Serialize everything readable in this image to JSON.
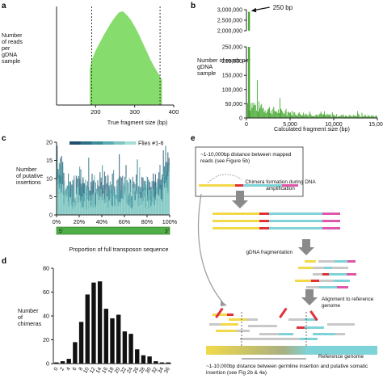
{
  "panel_a": {
    "letter": "a",
    "ylabel_lines": [
      "Number",
      "of reads",
      "per",
      "gDNA",
      "sample"
    ],
    "xlabel": "True fragment size (bp)",
    "colors": {
      "fill": "#86dc6c",
      "axis": "#222222"
    }
  },
  "panel_b": {
    "letter": "b",
    "ylabel_lines": [
      "Number of reads per",
      "gDNA",
      "sample"
    ],
    "xlabel": "Calculated fragment size (bp)",
    "annotation": "250 bp",
    "colors": {
      "bars": "#3fa42a"
    }
  },
  "panel_c": {
    "letter": "c",
    "ylabel_lines": [
      "Number",
      "of putative",
      "insertions"
    ],
    "xlabel": "Proportion of full transposon sequence",
    "legend_label": "Flies #1-6",
    "bar_left": "5'",
    "bar_right": "3'",
    "colors": {
      "series": [
        "#1f4f6a",
        "#2a6f86",
        "#3a8d98",
        "#58aab0",
        "#7cc5c1",
        "#a6ded6"
      ],
      "strip": "#4fae45"
    }
  },
  "panel_d": {
    "letter": "d",
    "ylabel_lines": [
      "Number",
      "of",
      "chimeras"
    ]
  },
  "panel_e": {
    "letter": "e",
    "box_text": "~1-10,000bp distance between mapped reads (see Figure 5b)",
    "step1": "Chimera formation during DNA amplification",
    "step2": "gDNA fragmentation",
    "step3": "Alignment to reference genome",
    "ref_label": "Reference genome",
    "bottom_text": "~1-10,000bp distance between germline insertion and putative somatic insertion (see Fig 2b & 4a)",
    "colors": {
      "yellow": "#f2d94a",
      "red": "#e0313a",
      "cyan": "#7ed3d8",
      "pink": "#e056a8",
      "grey": "#c8c8c8",
      "arrow": "#8a8a8a"
    }
  },
  "chart_data": [
    {
      "type": "area",
      "title": "",
      "xlabel": "True fragment size (bp)",
      "ylabel": "Number of reads per gDNA sample",
      "xlim": [
        100,
        400
      ],
      "x_ticks": [
        200,
        300,
        400
      ],
      "y_ticks": [],
      "x": [
        185,
        190,
        200,
        210,
        220,
        230,
        240,
        250,
        260,
        270,
        280,
        290,
        300,
        310,
        320,
        330,
        340,
        350,
        360,
        370
      ],
      "y": [
        0.38,
        0.48,
        0.58,
        0.66,
        0.74,
        0.81,
        0.88,
        0.94,
        0.99,
        1.0,
        0.96,
        0.91,
        0.84,
        0.76,
        0.67,
        0.58,
        0.49,
        0.41,
        0.34,
        0.27
      ],
      "reference_lines_x": [
        190,
        365
      ]
    },
    {
      "type": "bar",
      "title": "",
      "xlabel": "Calculated fragment size (bp)",
      "ylabel": "Number of reads per gDNA sample",
      "xlim": [
        0,
        15000
      ],
      "ylim": [
        0,
        3000000
      ],
      "x_ticks": [
        "0",
        "5,000",
        "10,000",
        "15,000"
      ],
      "y_ticks": [
        "0",
        "50,000",
        "100,000",
        "150,000",
        "200,000",
        "250,000",
        "2,000,000",
        "2,500,000",
        "3,000,000"
      ],
      "peak_x": 250,
      "annotation": "250 bp"
    },
    {
      "type": "bar",
      "title": "",
      "xlabel": "Proportion of full transposon sequence",
      "ylabel": "Number of putative insertions",
      "xlim": [
        0,
        100
      ],
      "ylim": [
        0,
        20
      ],
      "x_ticks": [
        "0%",
        "20%",
        "40%",
        "60%",
        "80%",
        "100%"
      ],
      "y_ticks": [
        "0",
        "5",
        "10",
        "15",
        "20"
      ],
      "legend": "Flies #1-6"
    },
    {
      "type": "bar",
      "title": "",
      "xlabel": "",
      "ylabel": "Number of chimeras",
      "ylim": [
        0,
        80
      ],
      "y_ticks": [
        "0",
        "20",
        "40",
        "60",
        "80"
      ],
      "categories": [
        "0",
        "2",
        "4",
        "6",
        "8",
        "10",
        "12",
        "14",
        "16",
        "18",
        "20",
        "22",
        "24",
        "26",
        "28",
        "30",
        "32",
        "34",
        "36"
      ],
      "values": [
        1,
        2,
        4,
        18,
        35,
        58,
        68,
        69,
        46,
        38,
        41,
        27,
        25,
        12,
        7,
        6,
        2,
        1,
        1
      ]
    }
  ]
}
